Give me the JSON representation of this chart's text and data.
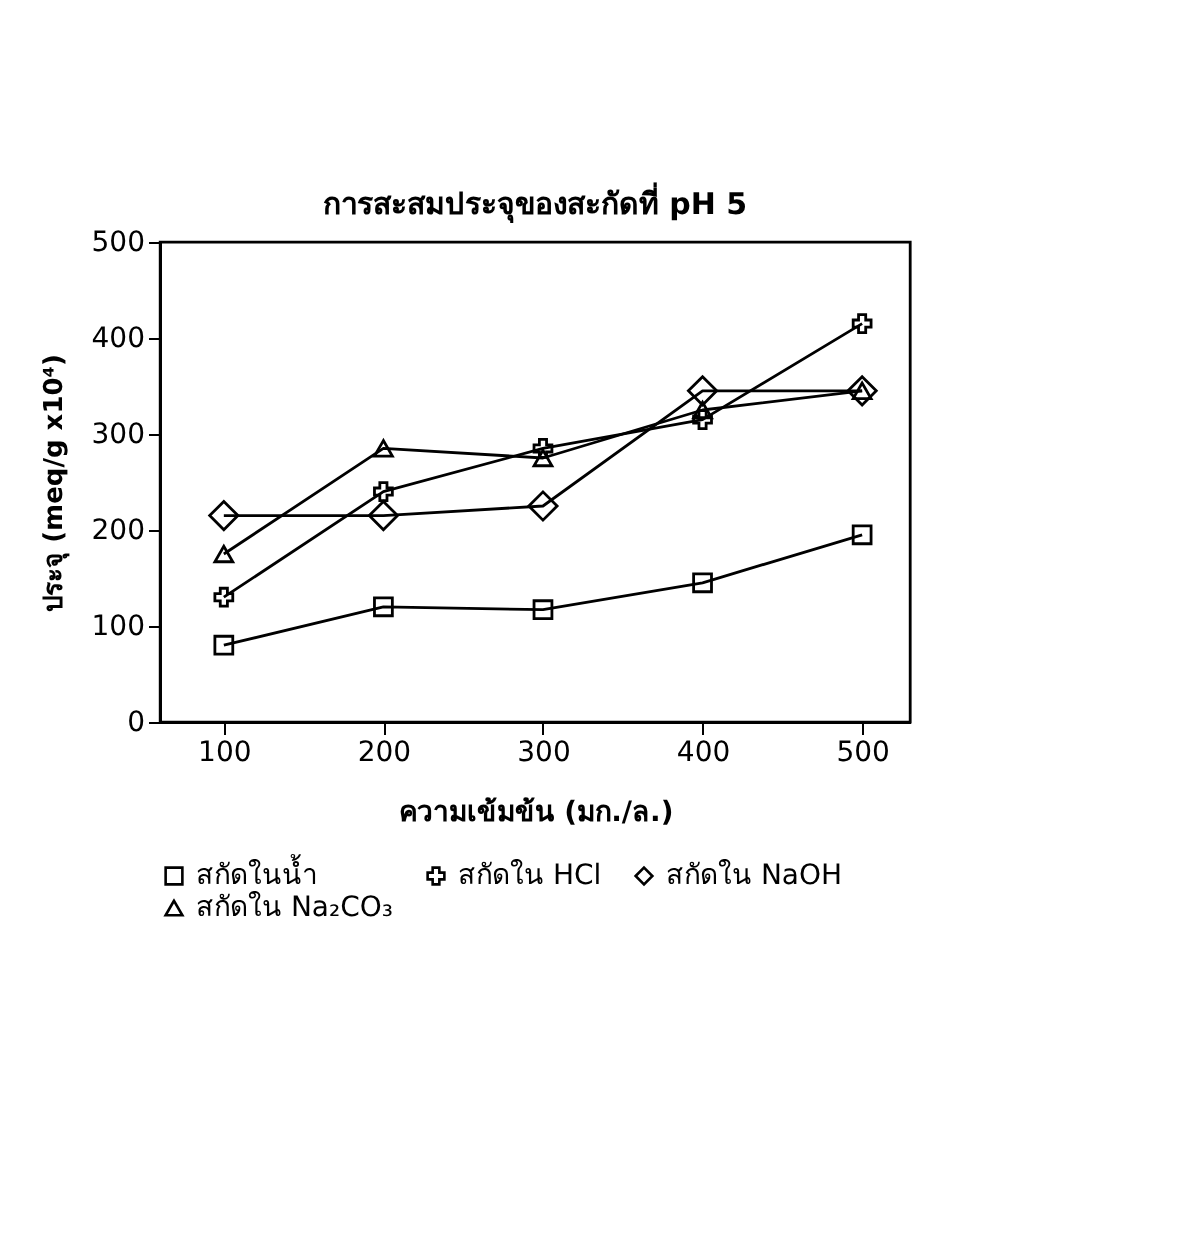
{
  "chart_data": {
    "type": "line",
    "title": "การสะสมประจุของสะกัดที่ pH 5",
    "xlabel": "ความเข้มข้น (มก./ล.)",
    "ylabel": "ประจุ (meq/g x10⁴)",
    "x": [
      100,
      200,
      300,
      400,
      500
    ],
    "xlim": [
      60,
      530
    ],
    "xticks": [
      100,
      200,
      300,
      400,
      500
    ],
    "ylim": [
      0,
      500
    ],
    "yticks": [
      0,
      100,
      200,
      300,
      400,
      500
    ],
    "grid": false,
    "legend": "bottom",
    "line_style": "solid",
    "series": [
      {
        "name": "สกัดในน้ำ",
        "color": "#000000",
        "marker": "square",
        "values": [
          80,
          120,
          117,
          145,
          195
        ]
      },
      {
        "name": "สกัดใน HCl",
        "color": "#000000",
        "marker": "cross",
        "values": [
          130,
          240,
          285,
          315,
          415
        ]
      },
      {
        "name": "สกัดใน NaOH",
        "color": "#000000",
        "marker": "diamond",
        "values": [
          215,
          215,
          225,
          345,
          345
        ]
      },
      {
        "name": "สกัดใน Na₂CO₃",
        "color": "#000000",
        "marker": "triangle",
        "values": [
          175,
          285,
          275,
          325,
          345
        ]
      }
    ]
  }
}
